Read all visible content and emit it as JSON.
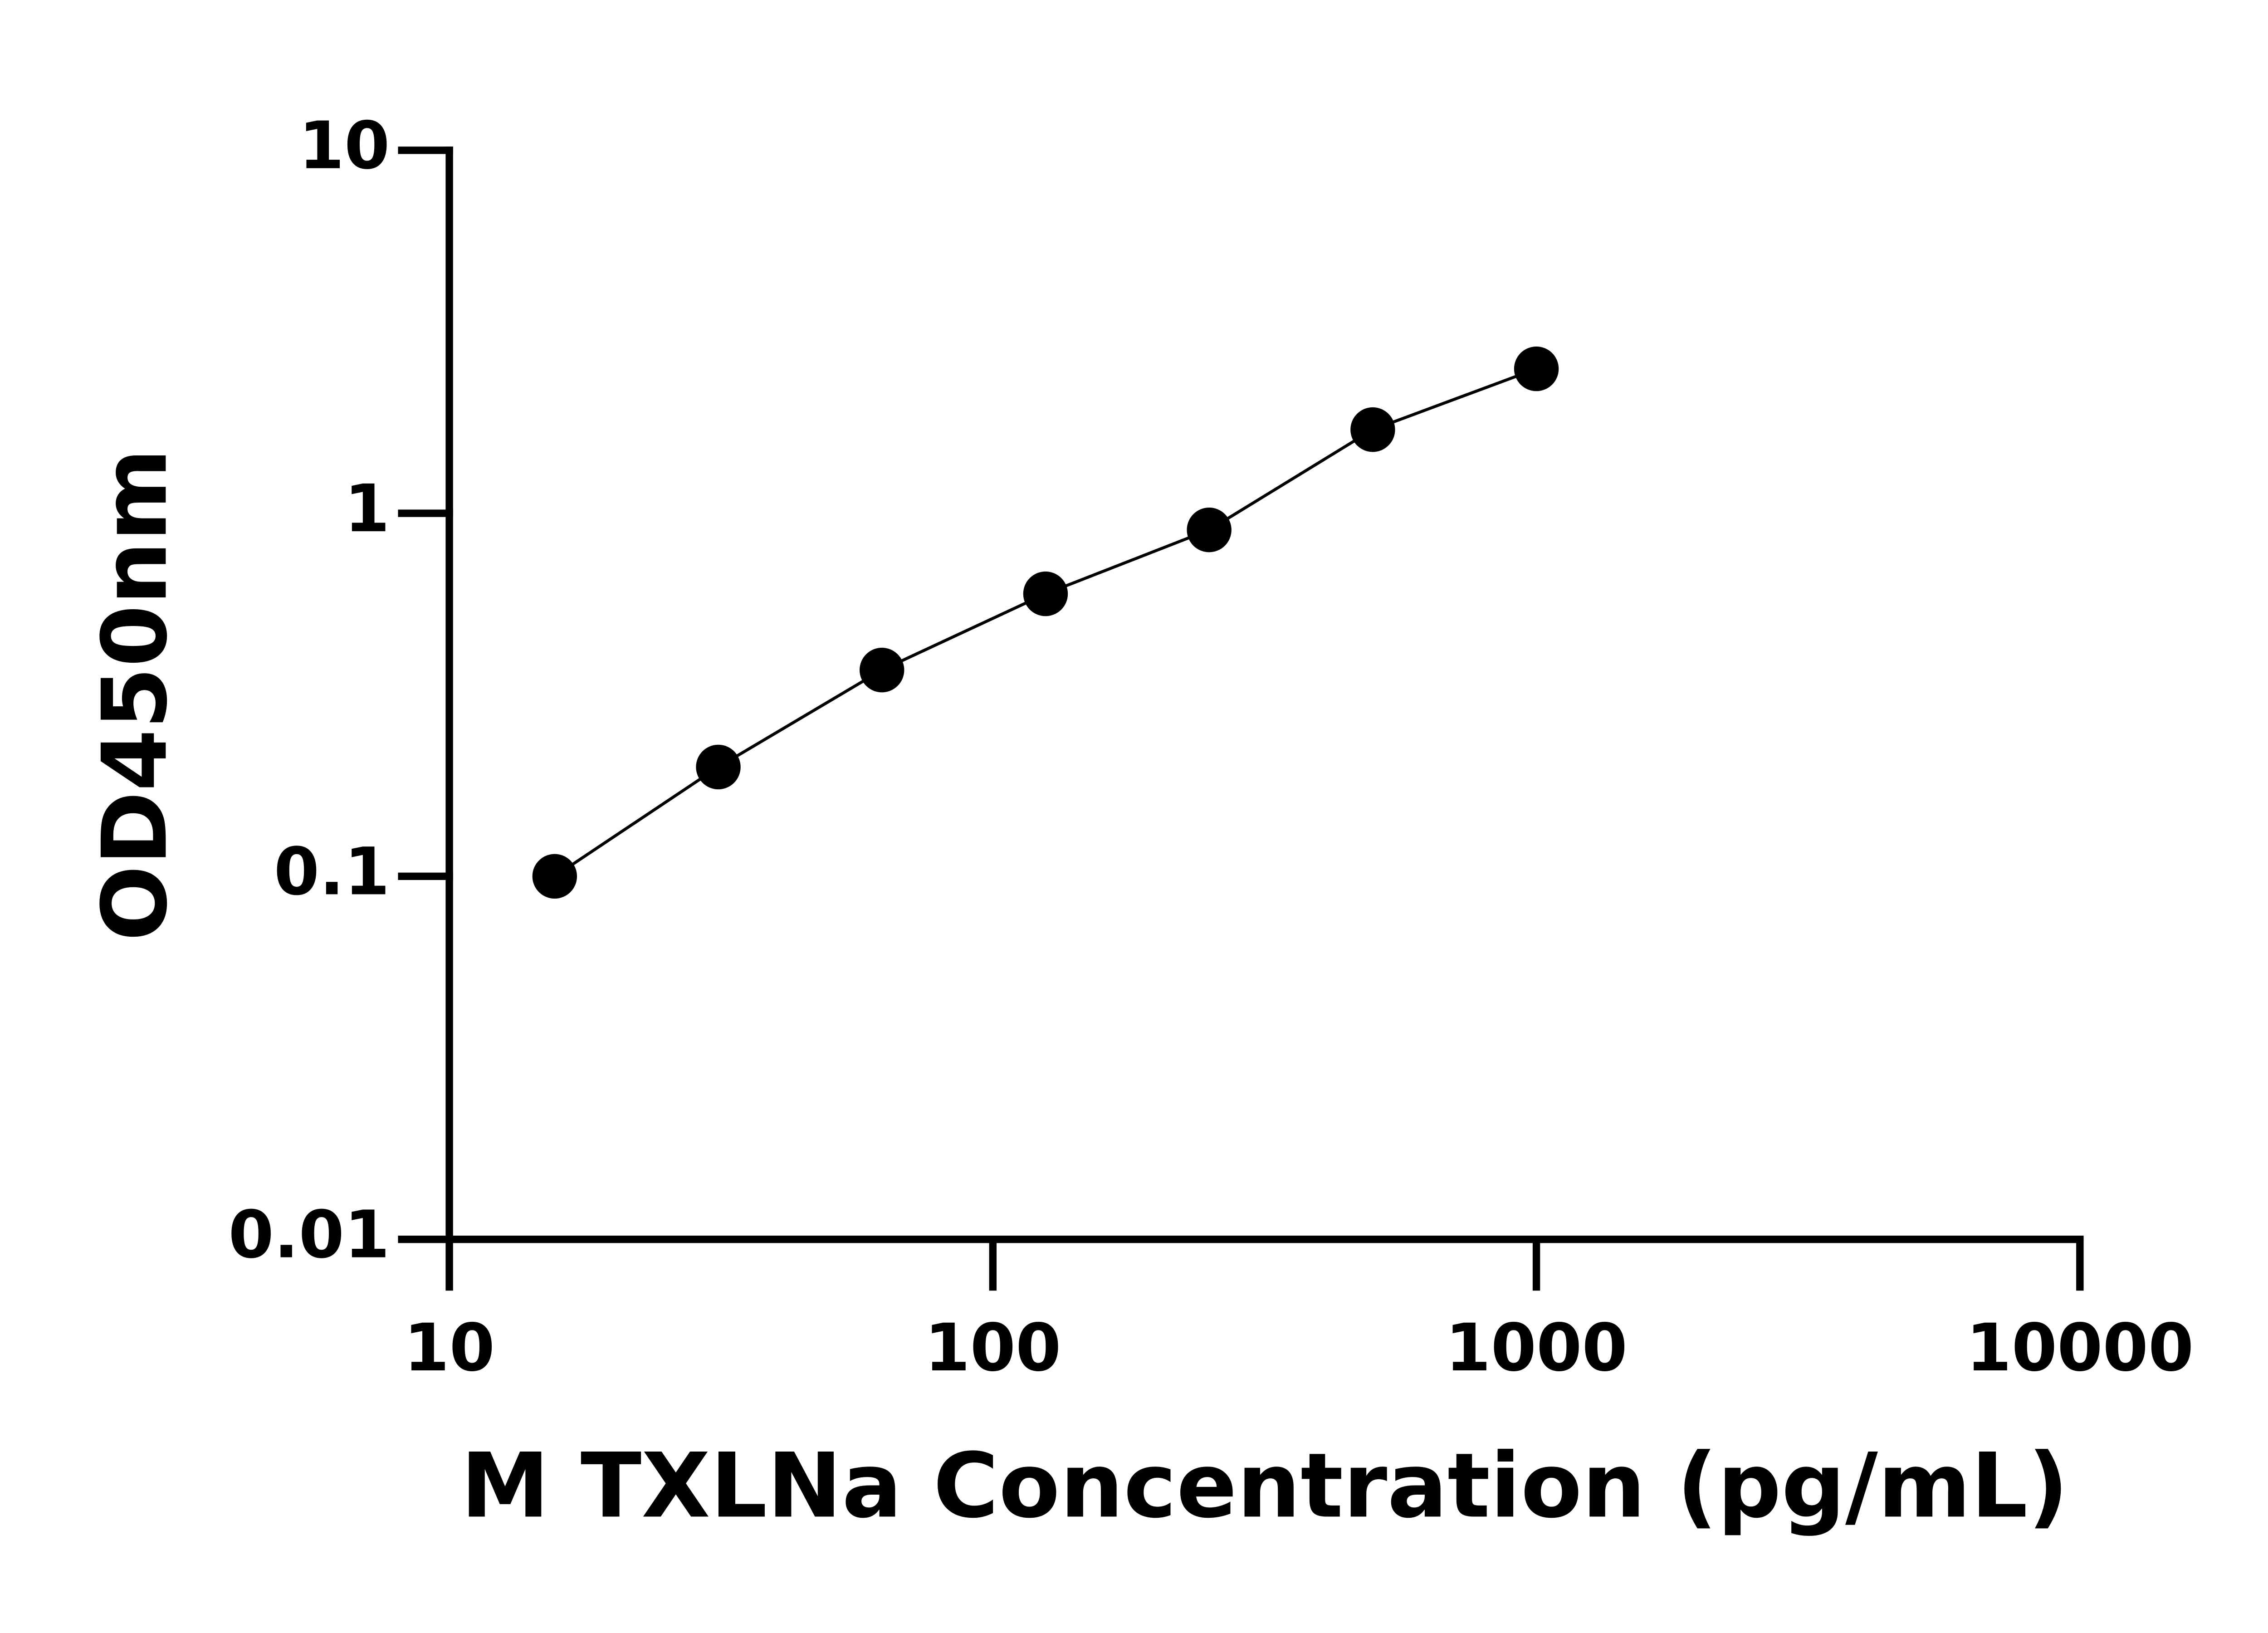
{
  "chart_data": {
    "type": "scatter",
    "x_label": "M TXLNa Concentration (pg/mL)",
    "y_label": "OD450nm",
    "x": [
      15.625,
      31.25,
      62.5,
      125,
      250,
      500,
      1000
    ],
    "values": [
      0.1,
      0.2,
      0.37,
      0.6,
      0.9,
      1.7,
      2.5
    ],
    "color": "#000000",
    "line": true,
    "x_log": true,
    "y_log": true,
    "xlim": [
      10,
      10000
    ],
    "ylim": [
      0.01,
      10
    ],
    "xticks": [
      10,
      100,
      1000,
      10000
    ],
    "yticks": [
      0.01,
      0.1,
      1,
      10
    ]
  }
}
